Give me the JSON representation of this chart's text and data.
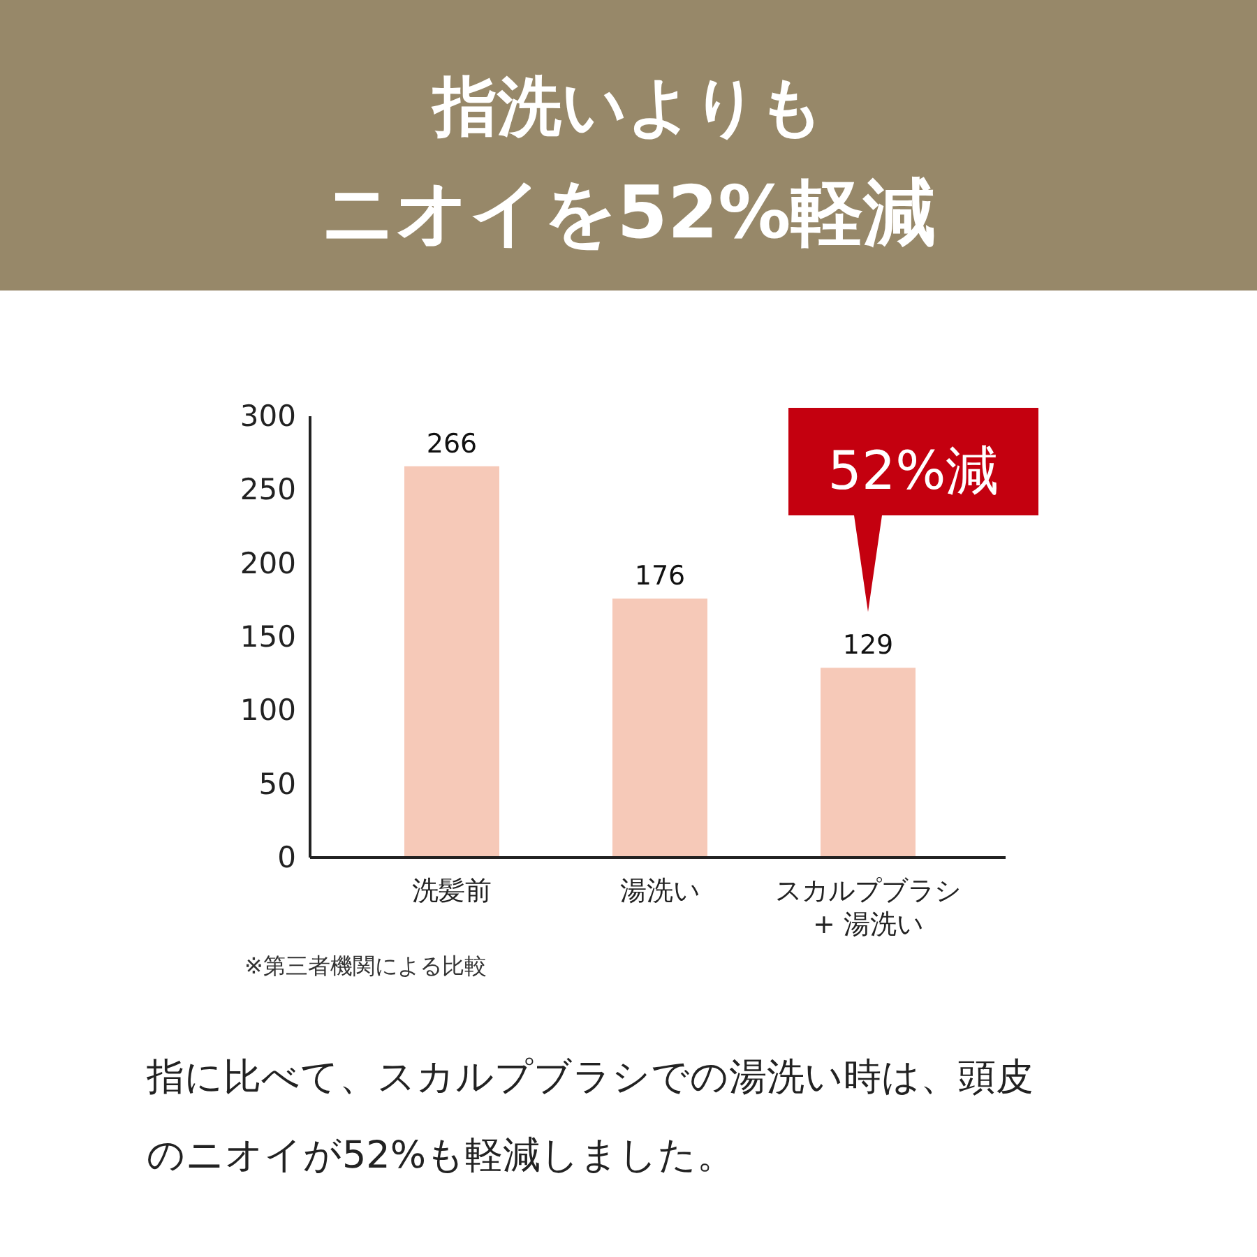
{
  "chart_data": {
    "type": "bar",
    "title": "指洗いよりも",
    "subtitle": "ニオイを52%軽減",
    "categories": [
      "洗髪前",
      "湯洗い",
      "スカルプブラシ + 湯洗い"
    ],
    "values": [
      266,
      176,
      129
    ],
    "color": "#f6c9b8",
    "data_labels": true,
    "ylim": [
      0,
      300
    ],
    "yticks": [
      0,
      50,
      100,
      150,
      200,
      250,
      300
    ],
    "grid": false,
    "annotations": [
      "52%減",
      "※第三者機関による比較",
      "指に比べて、スカルプブラシでの湯洗い時は、頭皮のニオイが52%も軽減しました。"
    ]
  }
}
